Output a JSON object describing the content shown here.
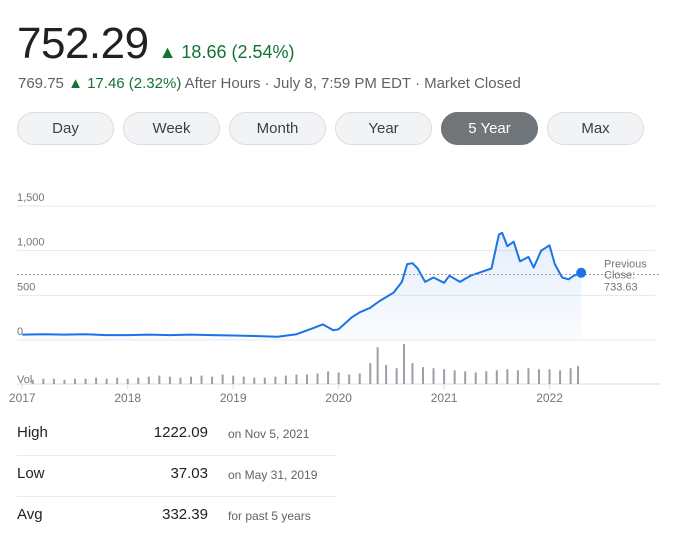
{
  "quote": {
    "price": "752.29",
    "change_arrow": "▲",
    "change_text": "18.66 (2.54%)",
    "after_hours_price": "769.75",
    "after_hours_change": "17.46 (2.32%)",
    "after_hours_label": "After Hours",
    "timestamp": "July 8, 7:59 PM EDT",
    "market_status": "Market Closed",
    "up_color": "#137333"
  },
  "tabs": [
    {
      "label": "Day"
    },
    {
      "label": "Week"
    },
    {
      "label": "Month"
    },
    {
      "label": "Year"
    },
    {
      "label": "5 Year",
      "active": true
    },
    {
      "label": "Max"
    }
  ],
  "chart_data": {
    "type": "line",
    "title": "",
    "series_color": "#1a73e8",
    "ylim": [
      0,
      1500
    ],
    "yticks": [
      0,
      500,
      1000,
      1500
    ],
    "ytick_labels": [
      "0",
      "500",
      "1,000",
      "1,500"
    ],
    "volume_label": "Vol",
    "x_ticks": [
      2017,
      2018,
      2019,
      2020,
      2021,
      2022
    ],
    "x_tick_labels": [
      "2017",
      "2018",
      "2019",
      "2020",
      "2021",
      "2022"
    ],
    "xlim": [
      2016.95,
      2023.0
    ],
    "series": [
      {
        "name": "Price",
        "x": [
          2017.0,
          2017.2,
          2017.4,
          2017.6,
          2017.8,
          2018.0,
          2018.2,
          2018.4,
          2018.6,
          2018.8,
          2019.0,
          2019.2,
          2019.42,
          2019.6,
          2019.75,
          2019.85,
          2019.95,
          2020.0,
          2020.12,
          2020.2,
          2020.3,
          2020.38,
          2020.45,
          2020.52,
          2020.6,
          2020.65,
          2020.7,
          2020.75,
          2020.82,
          2020.9,
          2021.0,
          2021.05,
          2021.15,
          2021.25,
          2021.35,
          2021.45,
          2021.52,
          2021.55,
          2021.6,
          2021.66,
          2021.72,
          2021.8,
          2021.85,
          2021.92,
          2022.0,
          2022.05,
          2022.12,
          2022.18,
          2022.23,
          2022.3
        ],
        "values": [
          60,
          65,
          60,
          65,
          55,
          55,
          60,
          55,
          60,
          55,
          50,
          45,
          37,
          65,
          130,
          175,
          110,
          120,
          250,
          310,
          360,
          430,
          480,
          530,
          650,
          850,
          860,
          800,
          650,
          700,
          640,
          720,
          650,
          720,
          760,
          800,
          1180,
          1200,
          1050,
          1100,
          880,
          930,
          810,
          1000,
          1060,
          850,
          700,
          680,
          720,
          752.29
        ]
      }
    ],
    "volume": {
      "x": [
        2017.1,
        2017.2,
        2017.3,
        2017.4,
        2017.5,
        2017.6,
        2017.7,
        2017.8,
        2017.9,
        2018.0,
        2018.1,
        2018.2,
        2018.3,
        2018.4,
        2018.5,
        2018.6,
        2018.7,
        2018.8,
        2018.9,
        2019.0,
        2019.1,
        2019.2,
        2019.3,
        2019.4,
        2019.5,
        2019.6,
        2019.7,
        2019.8,
        2019.9,
        2020.0,
        2020.1,
        2020.2,
        2020.3,
        2020.37,
        2020.45,
        2020.55,
        2020.62,
        2020.7,
        2020.8,
        2020.9,
        2021.0,
        2021.1,
        2021.2,
        2021.3,
        2021.4,
        2021.5,
        2021.6,
        2021.7,
        2021.8,
        2021.9,
        2022.0,
        2022.1,
        2022.2,
        2022.27
      ],
      "values": [
        4,
        5,
        5,
        4,
        5,
        5,
        6,
        5,
        6,
        5,
        6,
        7,
        8,
        7,
        6,
        7,
        8,
        7,
        9,
        8,
        7,
        6,
        6,
        7,
        8,
        9,
        9,
        10,
        12,
        11,
        9,
        10,
        20,
        35,
        18,
        15,
        38,
        20,
        16,
        15,
        14,
        13,
        12,
        11,
        12,
        13,
        14,
        13,
        15,
        14,
        14,
        13,
        15,
        17
      ]
    },
    "previous_close": {
      "label_line1": "Previous",
      "label_line2": "Close:",
      "value": "733.63",
      "value_num": 733.63
    }
  },
  "stats": [
    {
      "label": "High",
      "value": "1222.09",
      "note": "on Nov 5, 2021"
    },
    {
      "label": "Low",
      "value": "37.03",
      "note": "on May 31, 2019"
    },
    {
      "label": "Avg",
      "value": "332.39",
      "note": "for past 5 years"
    }
  ]
}
